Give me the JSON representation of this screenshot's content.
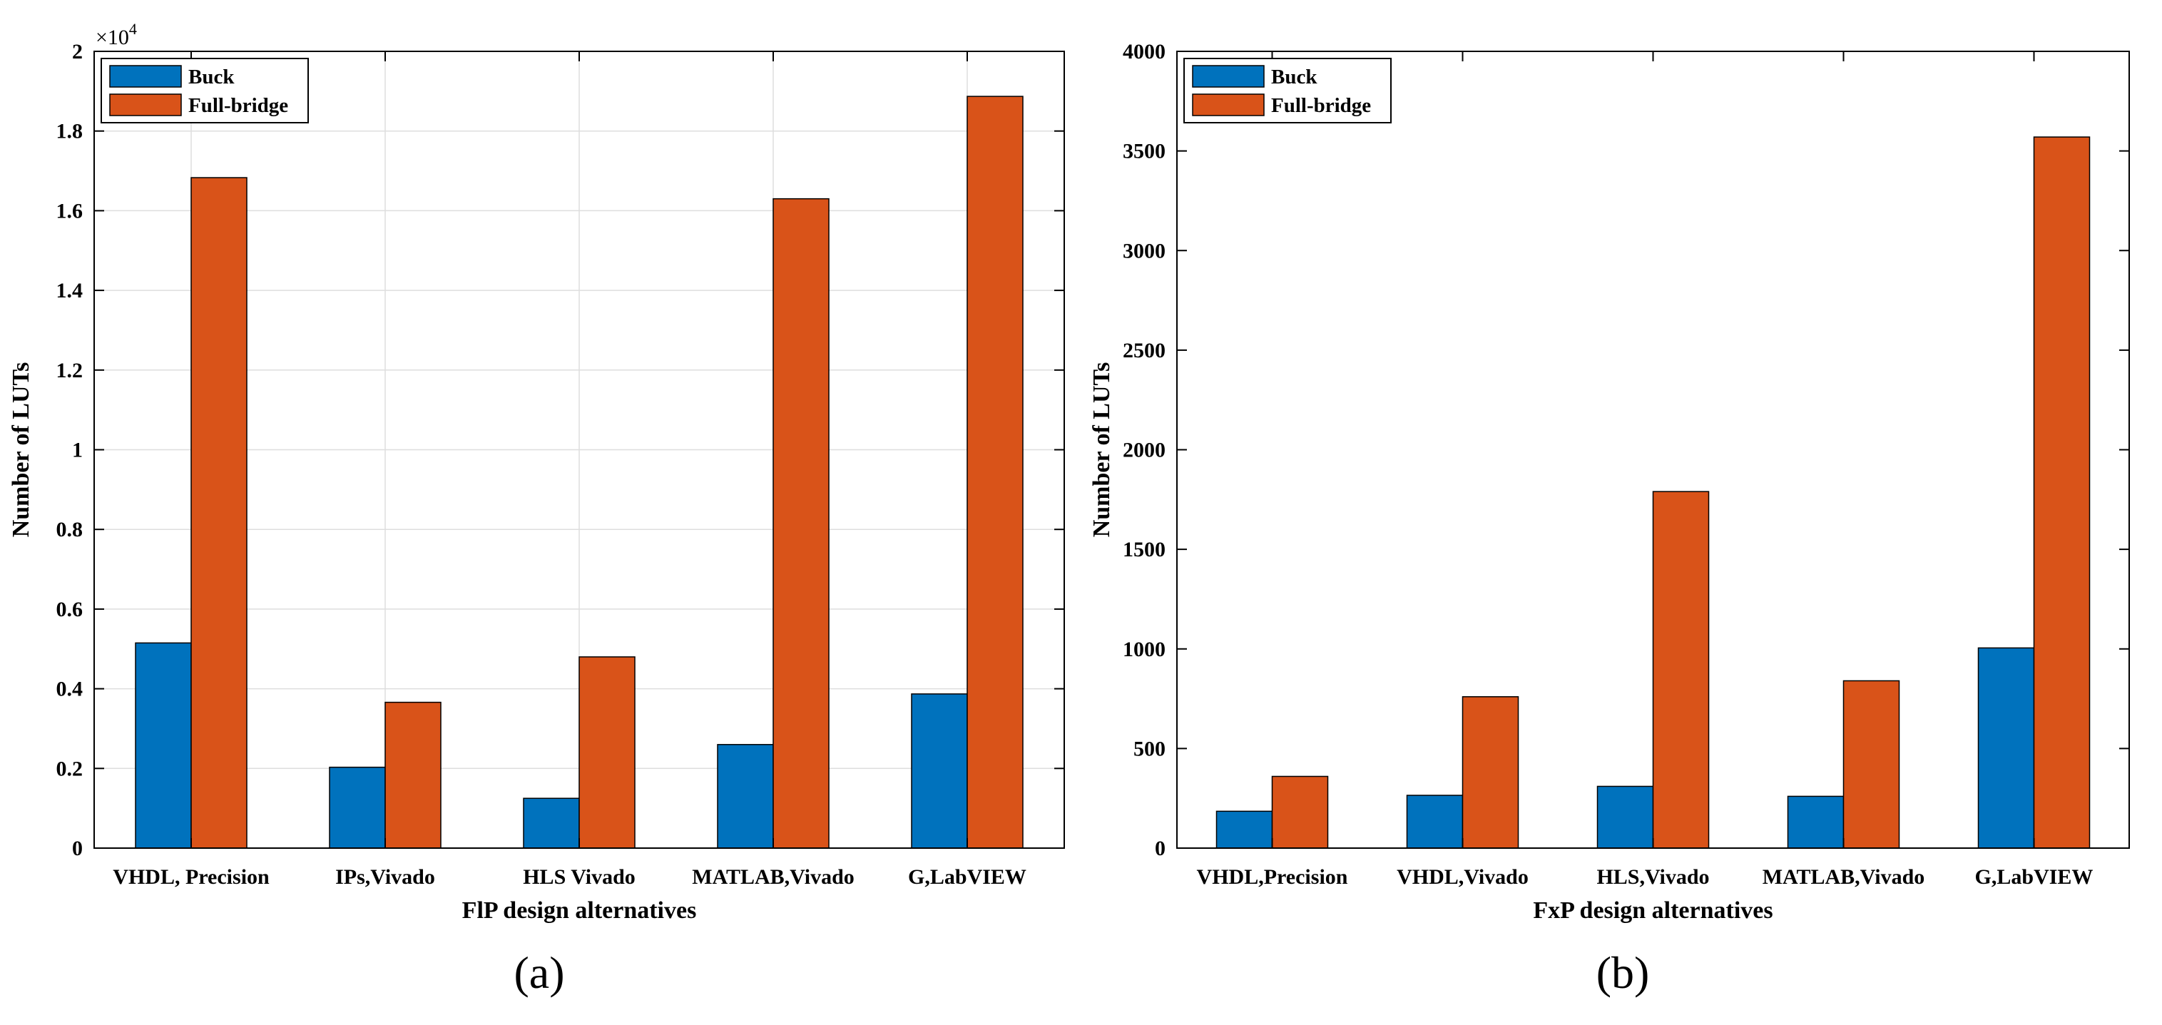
{
  "colors": {
    "buck": "#0072BD",
    "full_bridge": "#D95319",
    "grid": "#dedede",
    "axis": "#000000"
  },
  "chart_data": [
    {
      "type": "bar",
      "panel_label": "(a)",
      "title": "",
      "xlabel": "FlP design alternatives",
      "ylabel": "Number of LUTs",
      "exponent_label": "×10",
      "exponent_power": "4",
      "categories": [
        "VHDL, Precision",
        "IPs,Vivado",
        "HLS Vivado",
        "MATLAB,Vivado",
        "G,LabVIEW"
      ],
      "series": [
        {
          "name": "Buck",
          "values": [
            5150,
            2030,
            1250,
            2600,
            3870
          ]
        },
        {
          "name": "Full-bridge",
          "values": [
            16830,
            3660,
            4800,
            16300,
            18870
          ]
        }
      ],
      "ylim": [
        0,
        20000
      ],
      "yticks": [
        0,
        2000,
        4000,
        6000,
        8000,
        10000,
        12000,
        14000,
        16000,
        18000,
        20000
      ],
      "ytick_labels": [
        "0",
        "0.2",
        "0.4",
        "0.6",
        "0.8",
        "1",
        "1.2",
        "1.4",
        "1.6",
        "1.8",
        "2"
      ],
      "grid": true,
      "legend_position": "top-left"
    },
    {
      "type": "bar",
      "panel_label": "(b)",
      "title": "",
      "xlabel": "FxP design alternatives",
      "ylabel": "Number of LUTs",
      "categories": [
        "VHDL,Precision",
        "VHDL,Vivado",
        "HLS,Vivado",
        "MATLAB,Vivado",
        "G,LabVIEW"
      ],
      "series": [
        {
          "name": "Buck",
          "values": [
            185,
            265,
            310,
            260,
            1005
          ]
        },
        {
          "name": "Full-bridge",
          "values": [
            360,
            760,
            1790,
            840,
            3570
          ]
        }
      ],
      "ylim": [
        0,
        4000
      ],
      "yticks": [
        0,
        500,
        1000,
        1500,
        2000,
        2500,
        3000,
        3500,
        4000
      ],
      "ytick_labels": [
        "0",
        "500",
        "1000",
        "1500",
        "2000",
        "2500",
        "3000",
        "3500",
        "4000"
      ],
      "grid": false,
      "legend_position": "top-left"
    }
  ]
}
